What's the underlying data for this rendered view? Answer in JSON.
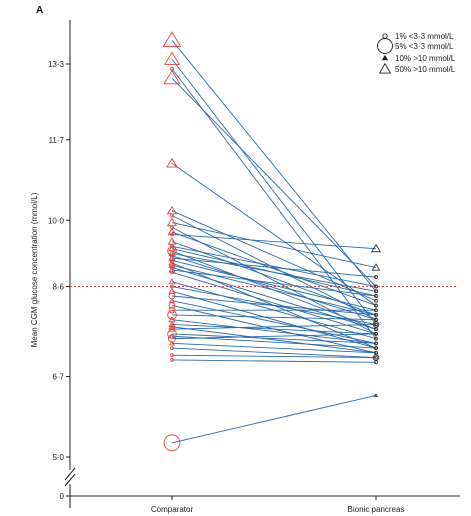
{
  "chart_data": {
    "type": "scatter",
    "panel_label": "A",
    "ylabel": "Mean CGM glucose concentration (mmol/L)",
    "categories": [
      "Comparator",
      "Bionic pancreas"
    ],
    "y_ticks": [
      0,
      5.0,
      6.7,
      8.6,
      10.0,
      11.7,
      13.3
    ],
    "y_tick_labels": [
      "0",
      "5·0",
      "6·7",
      "8·6",
      "10·0",
      "11·7",
      "13·3"
    ],
    "reference_line": {
      "value": 8.6,
      "style": "dashed",
      "color": "#e8403a"
    },
    "axis_break": true,
    "legend": {
      "placement": "top-right",
      "entries": [
        {
          "marker": "circle",
          "size": "small",
          "label": "1% <3·3 mmol/L"
        },
        {
          "marker": "circle",
          "size": "large",
          "label": "5% <3·3 mmol/L"
        },
        {
          "marker": "triangle",
          "size": "small",
          "label": "10% >10 mmol/L"
        },
        {
          "marker": "triangle",
          "size": "large",
          "label": "50% >10 mmol/L"
        }
      ]
    },
    "colors": {
      "comparator": "#e8403a",
      "bionic": "#333333",
      "lines": "#2a6aa8",
      "axis": "#222222"
    },
    "pairs": [
      {
        "c": 13.8,
        "b": 8.5,
        "cm": "triangle",
        "cs": 12,
        "bm": "circle",
        "bs": 2
      },
      {
        "c": 13.4,
        "b": 7.8,
        "cm": "triangle",
        "cs": 10,
        "bm": "circle",
        "bs": 2
      },
      {
        "c": 13.2,
        "b": 7.5,
        "cm": "circle",
        "cs": 2,
        "bm": "circle",
        "bs": 2
      },
      {
        "c": 13.0,
        "b": 8.6,
        "cm": "triangle",
        "cs": 11,
        "bm": "circle",
        "bs": 2
      },
      {
        "c": 11.2,
        "b": 8.2,
        "cm": "triangle",
        "cs": 7,
        "bm": "circle",
        "bs": 2
      },
      {
        "c": 10.2,
        "b": 8.3,
        "cm": "triangle",
        "cs": 6,
        "bm": "circle",
        "bs": 2
      },
      {
        "c": 10.1,
        "b": 7.9,
        "cm": "circle",
        "cs": 2,
        "bm": "circle",
        "bs": 2
      },
      {
        "c": 9.95,
        "b": 9.0,
        "cm": "triangle",
        "cs": 6,
        "bm": "triangle",
        "bs": 5
      },
      {
        "c": 9.85,
        "b": 7.6,
        "cm": "circle",
        "cs": 2,
        "bm": "circle",
        "bs": 2
      },
      {
        "c": 9.75,
        "b": 8.2,
        "cm": "triangle",
        "cs": 5,
        "bm": "circle",
        "bs": 2
      },
      {
        "c": 9.7,
        "b": 9.4,
        "cm": "circle",
        "cs": 2,
        "bm": "triangle",
        "bs": 6
      },
      {
        "c": 9.55,
        "b": 8.0,
        "cm": "triangle",
        "cs": 5,
        "bm": "circle",
        "bs": 2
      },
      {
        "c": 9.45,
        "b": 8.6,
        "cm": "circle",
        "cs": 2,
        "bm": "circle",
        "bs": 2
      },
      {
        "c": 9.4,
        "b": 8.4,
        "cm": "triangle",
        "cs": 4,
        "bm": "circle",
        "bs": 2
      },
      {
        "c": 9.35,
        "b": 7.7,
        "cm": "circle",
        "cs": 6,
        "bm": "circle",
        "bs": 2
      },
      {
        "c": 9.3,
        "b": 8.5,
        "cm": "triangle",
        "cs": 4,
        "bm": "circle",
        "bs": 2
      },
      {
        "c": 9.25,
        "b": 7.9,
        "cm": "circle",
        "cs": 2,
        "bm": "circle",
        "bs": 2
      },
      {
        "c": 9.2,
        "b": 8.8,
        "cm": "triangle",
        "cs": 4,
        "bm": "circle",
        "bs": 2
      },
      {
        "c": 9.15,
        "b": 8.1,
        "cm": "circle",
        "cs": 2,
        "bm": "circle",
        "bs": 2
      },
      {
        "c": 9.1,
        "b": 7.3,
        "cm": "triangle",
        "cs": 4,
        "bm": "circle",
        "bs": 2
      },
      {
        "c": 9.05,
        "b": 8.0,
        "cm": "triangle",
        "cs": 4,
        "bm": "circle",
        "bs": 2
      },
      {
        "c": 9.0,
        "b": 7.7,
        "cm": "circle",
        "cs": 2,
        "bm": "circle",
        "bs": 2
      },
      {
        "c": 8.95,
        "b": 8.4,
        "cm": "triangle",
        "cs": 4,
        "bm": "circle",
        "bs": 2
      },
      {
        "c": 8.9,
        "b": 7.6,
        "cm": "circle",
        "cs": 2,
        "bm": "circle",
        "bs": 2
      },
      {
        "c": 8.7,
        "b": 7.5,
        "cm": "triangle",
        "cs": 4,
        "bm": "circle",
        "bs": 2
      },
      {
        "c": 8.6,
        "b": 7.8,
        "cm": "circle",
        "cs": 2,
        "bm": "circle",
        "bs": 2
      },
      {
        "c": 8.5,
        "b": 7.3,
        "cm": "triangle",
        "cs": 4,
        "bm": "circle",
        "bs": 2
      },
      {
        "c": 8.4,
        "b": 8.0,
        "cm": "circle",
        "cs": 4,
        "bm": "circle",
        "bs": 2
      },
      {
        "c": 8.3,
        "b": 7.4,
        "cm": "triangle",
        "cs": 3,
        "bm": "circle",
        "bs": 2
      },
      {
        "c": 8.2,
        "b": 7.2,
        "cm": "circle",
        "cs": 4,
        "bm": "circle",
        "bs": 2
      },
      {
        "c": 8.1,
        "b": 8.1,
        "cm": "circle",
        "cs": 4,
        "bm": "circle",
        "bs": 2
      },
      {
        "c": 8.0,
        "b": 7.9,
        "cm": "circle",
        "cs": 6,
        "bm": "circle",
        "bs": 2
      },
      {
        "c": 7.9,
        "b": 7.4,
        "cm": "triangle",
        "cs": 4,
        "bm": "circle",
        "bs": 2
      },
      {
        "c": 7.8,
        "b": 7.6,
        "cm": "triangle",
        "cs": 4,
        "bm": "circle",
        "bs": 2
      },
      {
        "c": 7.75,
        "b": 7.2,
        "cm": "triangle",
        "cs": 4,
        "bm": "circle",
        "bs": 2
      },
      {
        "c": 7.7,
        "b": 7.8,
        "cm": "triangle",
        "cs": 4,
        "bm": "circle",
        "bs": 4
      },
      {
        "c": 7.6,
        "b": 7.4,
        "cm": "circle",
        "cs": 6,
        "bm": "circle",
        "bs": 2
      },
      {
        "c": 7.55,
        "b": 7.3,
        "cm": "triangle",
        "cs": 3,
        "bm": "circle",
        "bs": 2
      },
      {
        "c": 7.5,
        "b": 7.6,
        "cm": "circle",
        "cs": 5,
        "bm": "circle",
        "bs": 2
      },
      {
        "c": 7.4,
        "b": 7.2,
        "cm": "triangle",
        "cs": 3,
        "bm": "circle",
        "bs": 2
      },
      {
        "c": 7.3,
        "b": 7.1,
        "cm": "circle",
        "cs": 2,
        "bm": "circle",
        "bs": 4
      },
      {
        "c": 7.15,
        "b": 7.1,
        "cm": "circle",
        "cs": 2,
        "bm": "circle",
        "bs": 2
      },
      {
        "c": 7.05,
        "b": 7.0,
        "cm": "circle",
        "cs": 2,
        "bm": "circle",
        "bs": 2
      },
      {
        "c": 5.3,
        "b": 6.3,
        "cm": "circle",
        "cs": 11,
        "bm": "triangle",
        "bs": 2
      }
    ]
  }
}
